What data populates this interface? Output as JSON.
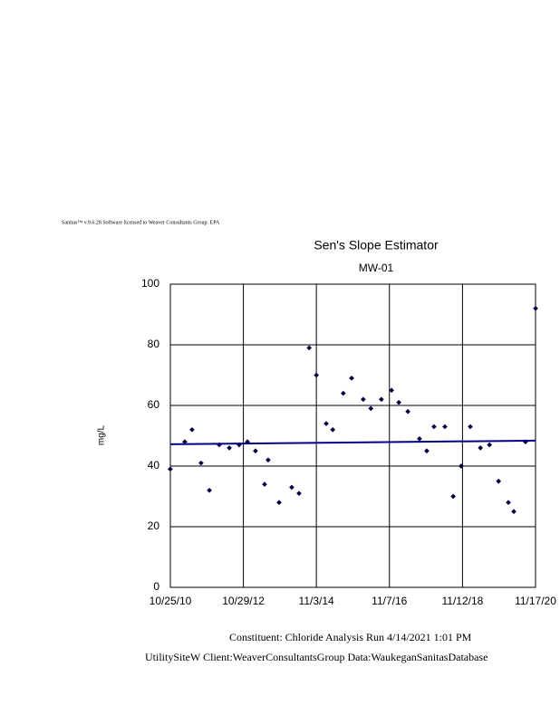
{
  "chart_data": {
    "type": "scatter",
    "header": "Sanitas™ v.9.6.28 Software licensed to Weaver Consultants Group. EPA",
    "title": "Sen's Slope Estimator",
    "subtitle": "MW-01",
    "y_label": "mg/L",
    "footer_lines": [
      "Constituent: Chloride Analysis Run 4/14/2021 1:01 PM",
      "UtilitySiteW Client:WeaverConsultantsGroup Data:WaukeganSanitasDatabase"
    ],
    "xlim": [
      2010.814,
      2020.879
    ],
    "xticks": [
      {
        "value": 2010.814,
        "label": "10/25/10"
      },
      {
        "value": 2012.827,
        "label": "10/29/12"
      },
      {
        "value": 2014.838,
        "label": "11/3/14"
      },
      {
        "value": 2016.852,
        "label": "11/7/16"
      },
      {
        "value": 2018.866,
        "label": "11/12/18"
      },
      {
        "value": 2020.879,
        "label": "11/17/20"
      }
    ],
    "ylim": [
      0,
      100
    ],
    "yticks": [
      0,
      20,
      40,
      60,
      80,
      100
    ],
    "grid": true,
    "series": [
      {
        "color": "#000040",
        "x": [
          2010.81,
          2011.21,
          2011.41,
          2011.66,
          2011.89,
          2012.16,
          2012.44,
          2012.71,
          2012.94,
          2013.16,
          2013.41,
          2013.51,
          2013.81,
          2014.16,
          2014.36,
          2014.64,
          2014.84,
          2015.11,
          2015.29,
          2015.58,
          2015.81,
          2016.13,
          2016.34,
          2016.63,
          2016.91,
          2017.11,
          2017.36,
          2017.68,
          2017.88,
          2018.08,
          2018.38,
          2018.61,
          2018.83,
          2019.08,
          2019.36,
          2019.61,
          2019.86,
          2020.13,
          2020.28,
          2020.6,
          2020.88
        ],
        "values": [
          39,
          48,
          52,
          41,
          32,
          47,
          46,
          47,
          48,
          45,
          34,
          42,
          28,
          33,
          31,
          79,
          70,
          54,
          52,
          64,
          69,
          62,
          59,
          62,
          65,
          61,
          58,
          49,
          45,
          53,
          53,
          30,
          40,
          53,
          46,
          47,
          35,
          28,
          25,
          48,
          92
        ]
      }
    ],
    "trend": {
      "color": "#00008b",
      "x": [
        2010.814,
        2020.879
      ],
      "values": [
        47.2,
        48.4
      ]
    }
  }
}
